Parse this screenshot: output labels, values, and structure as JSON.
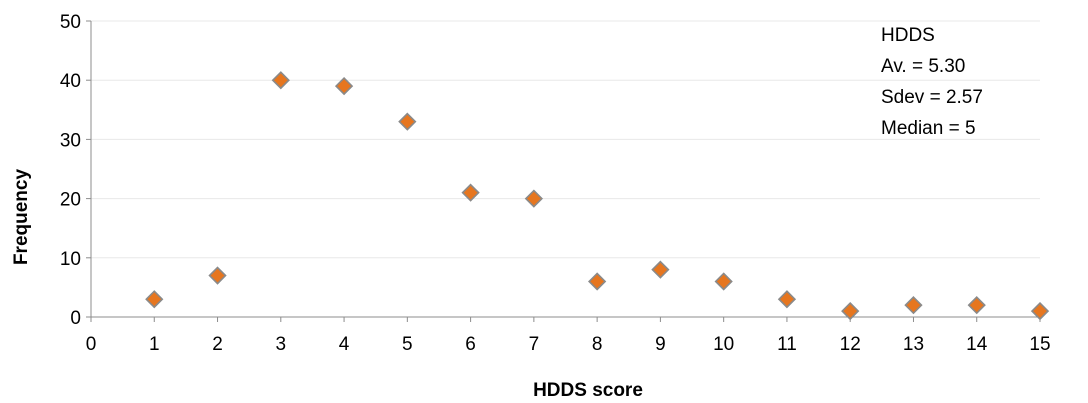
{
  "chart_data": {
    "type": "scatter",
    "xlabel": "HDDS score",
    "ylabel": "Frequency",
    "xlim": [
      0,
      15
    ],
    "ylim": [
      0,
      50
    ],
    "x_ticks": [
      0,
      1,
      2,
      3,
      4,
      5,
      6,
      7,
      8,
      9,
      10,
      11,
      12,
      13,
      14,
      15
    ],
    "y_ticks": [
      0,
      10,
      20,
      30,
      40,
      50
    ],
    "grid": "horizontal",
    "marker": "diamond",
    "colors": {
      "marker_fill": "#e6761f",
      "marker_stroke": "#8a8a8a"
    },
    "series": [
      {
        "x": [
          1,
          2,
          3,
          4,
          5,
          6,
          7,
          8,
          9,
          10,
          11,
          12,
          13,
          14,
          15
        ],
        "y": [
          3,
          7,
          40,
          39,
          33,
          21,
          20,
          6,
          8,
          6,
          3,
          1,
          2,
          2,
          1
        ]
      }
    ],
    "annotation": {
      "lines": [
        "HDDS",
        "Av. = 5.30",
        "Sdev = 2.57",
        "Median = 5"
      ]
    }
  }
}
